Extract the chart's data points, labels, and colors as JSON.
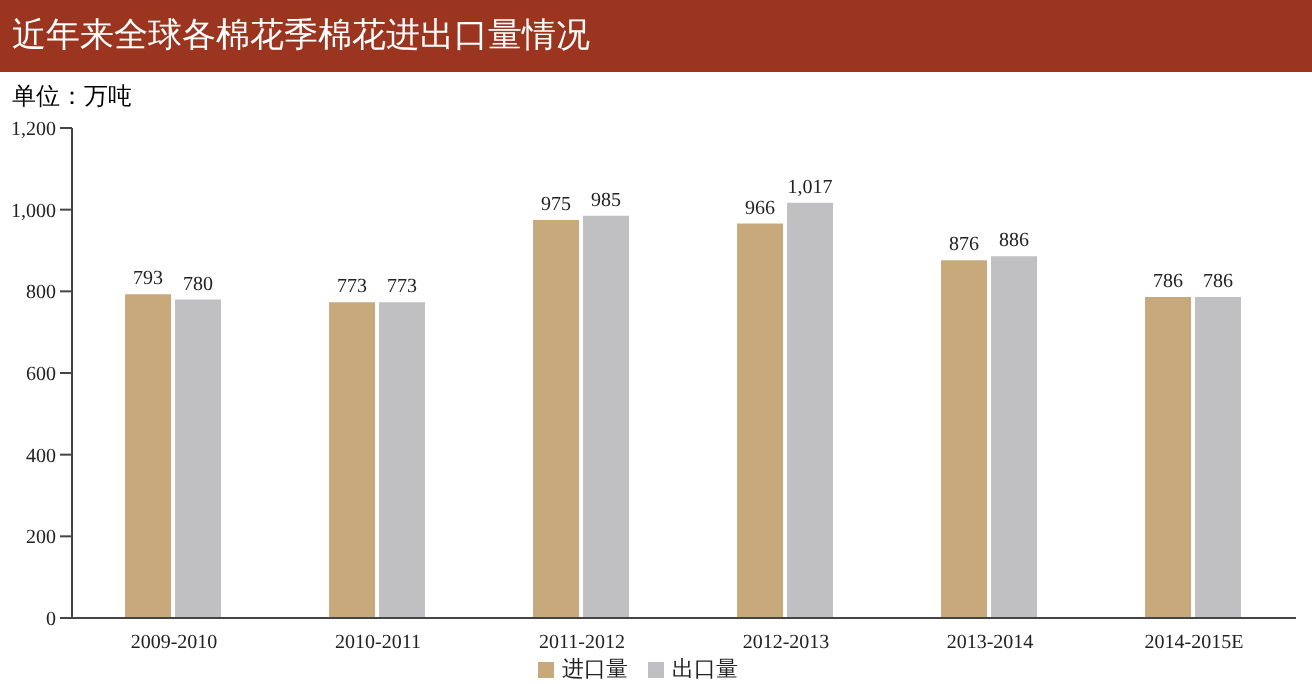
{
  "chart_data": {
    "type": "bar",
    "title": "近年来全球各棉花季棉花进出口量情况",
    "subtitle": "单位：万吨",
    "categories": [
      "2009-2010",
      "2010-2011",
      "2011-2012",
      "2012-2013",
      "2013-2014",
      "2014-2015E"
    ],
    "series": [
      {
        "name": "进口量",
        "color": "#c8a97b",
        "values": [
          793,
          773,
          975,
          966,
          876,
          786
        ],
        "value_labels": [
          "793",
          "773",
          "975",
          "966",
          "876",
          "786"
        ]
      },
      {
        "name": "出口量",
        "color": "#c0c0c2",
        "values": [
          780,
          773,
          985,
          1017,
          886,
          786
        ],
        "value_labels": [
          "780",
          "773",
          "985",
          "1,017",
          "886",
          "786"
        ]
      }
    ],
    "ylim": [
      0,
      1200
    ],
    "yticks": [
      0,
      200,
      400,
      600,
      800,
      {
        "value": 1000,
        "label": "1,000"
      },
      {
        "value": 1200,
        "label": "1,200"
      }
    ],
    "grid": false,
    "legend": "bottom"
  }
}
